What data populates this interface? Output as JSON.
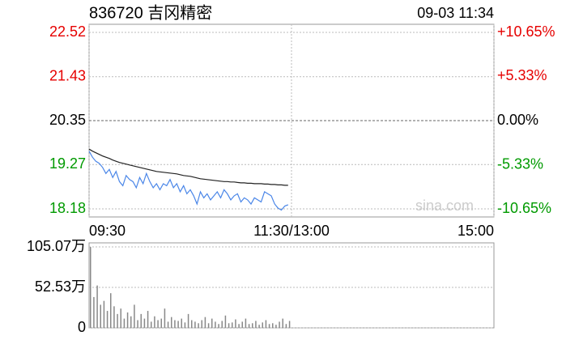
{
  "chart_data": [
    {
      "type": "line",
      "title": "836720 吉冈精密",
      "timestamp": "09-03 11:34",
      "watermark": "sina.com",
      "x": [
        0,
        2,
        4,
        6,
        8,
        10,
        12,
        14,
        16,
        18,
        20,
        22,
        24,
        26,
        28,
        30,
        32,
        34,
        36,
        38,
        40,
        42,
        44,
        46,
        48,
        50,
        52,
        54,
        56,
        58,
        60,
        62,
        64,
        66,
        68,
        70,
        72,
        74,
        76,
        78,
        80,
        82,
        84,
        86,
        88,
        90,
        92,
        94,
        96,
        98,
        100,
        102,
        104,
        106,
        108,
        110,
        112,
        114,
        116,
        118
      ],
      "xlim": [
        0,
        240
      ],
      "xticks": [
        {
          "value": 0,
          "label": "09:30"
        },
        {
          "value": 120,
          "label": "11:30/13:00"
        },
        {
          "value": 240,
          "label": "15:00"
        }
      ],
      "ylim": [
        18.18,
        22.52
      ],
      "yticks": [
        18.18,
        19.27,
        20.35,
        21.43,
        22.52
      ],
      "y2lim": [
        -10.65,
        10.65
      ],
      "y2ticks": [
        {
          "value": -10.65,
          "label": "-10.65%"
        },
        {
          "value": -5.33,
          "label": "-5.33%"
        },
        {
          "value": 0,
          "label": "0.00%"
        },
        {
          "value": 5.33,
          "label": "+5.33%"
        },
        {
          "value": 10.65,
          "label": "+10.65%"
        }
      ],
      "up_color": "#e60000",
      "down_color": "#009a00",
      "flat_color": "#000000",
      "grid": true,
      "series": [
        {
          "color": "#4a86e8",
          "values": [
            19.6,
            19.45,
            19.35,
            19.3,
            19.2,
            19.05,
            19.15,
            18.95,
            19.1,
            18.85,
            18.75,
            19.0,
            18.9,
            18.85,
            18.7,
            18.95,
            18.8,
            19.05,
            18.85,
            18.7,
            18.8,
            18.65,
            18.8,
            18.75,
            18.9,
            18.7,
            18.8,
            18.6,
            18.75,
            18.55,
            18.65,
            18.5,
            18.3,
            18.6,
            18.45,
            18.55,
            18.4,
            18.5,
            18.6,
            18.45,
            18.65,
            18.55,
            18.4,
            18.5,
            18.55,
            18.35,
            18.45,
            18.4,
            18.3,
            18.45,
            18.4,
            18.35,
            18.6,
            18.55,
            18.5,
            18.3,
            18.2,
            18.15,
            18.25,
            18.28
          ]
        },
        {
          "color": "#222222",
          "values": [
            19.65,
            19.6,
            19.56,
            19.52,
            19.48,
            19.45,
            19.42,
            19.38,
            19.35,
            19.32,
            19.3,
            19.28,
            19.26,
            19.24,
            19.22,
            19.2,
            19.18,
            19.16,
            19.14,
            19.12,
            19.1,
            19.09,
            19.08,
            19.07,
            19.06,
            19.05,
            19.04,
            19.02,
            19.0,
            18.99,
            18.98,
            18.96,
            18.94,
            18.92,
            18.91,
            18.9,
            18.89,
            18.88,
            18.87,
            18.86,
            18.85,
            18.85,
            18.84,
            18.84,
            18.83,
            18.82,
            18.82,
            18.81,
            18.81,
            18.8,
            18.8,
            18.8,
            18.79,
            18.79,
            18.78,
            18.78,
            18.77,
            18.77,
            18.76,
            18.76
          ]
        }
      ]
    },
    {
      "type": "bar",
      "x": [
        0,
        2,
        4,
        6,
        8,
        10,
        12,
        14,
        16,
        18,
        20,
        22,
        24,
        26,
        28,
        30,
        32,
        34,
        36,
        38,
        40,
        42,
        44,
        46,
        48,
        50,
        52,
        54,
        56,
        58,
        60,
        62,
        64,
        66,
        68,
        70,
        72,
        74,
        76,
        78,
        80,
        82,
        84,
        86,
        88,
        90,
        92,
        94,
        96,
        98,
        100,
        102,
        104,
        106,
        108,
        110,
        112,
        114,
        116,
        118
      ],
      "xlim": [
        0,
        240
      ],
      "color": "#888888",
      "grid": true,
      "ylim": [
        0,
        105.07
      ],
      "yticks": [
        0,
        {
          "value": 52.53,
          "label": "52.53万"
        },
        {
          "value": 105.07,
          "label": "105.07万"
        }
      ],
      "values": [
        105,
        40,
        55,
        30,
        35,
        22,
        45,
        28,
        18,
        25,
        12,
        20,
        15,
        30,
        10,
        18,
        12,
        22,
        8,
        15,
        10,
        12,
        25,
        8,
        14,
        10,
        9,
        12,
        7,
        18,
        10,
        8,
        6,
        10,
        14,
        6,
        12,
        8,
        5,
        9,
        16,
        6,
        7,
        11,
        5,
        8,
        12,
        5,
        6,
        9,
        4,
        7,
        10,
        5,
        6,
        4,
        8,
        12,
        5,
        9
      ]
    }
  ]
}
